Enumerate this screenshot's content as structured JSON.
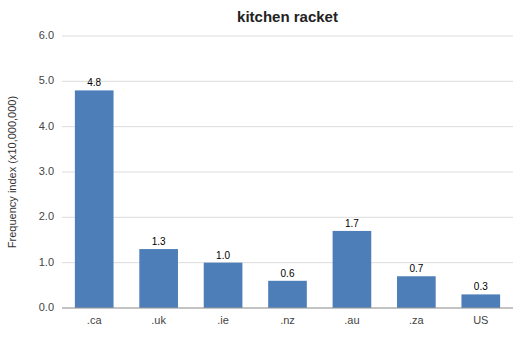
{
  "chart_data": {
    "type": "bar",
    "title": "kitchen racket",
    "categories": [
      ".ca",
      ".uk",
      ".ie",
      ".nz",
      ".au",
      ".za",
      "US"
    ],
    "values": [
      4.8,
      1.3,
      1.0,
      0.6,
      1.7,
      0.7,
      0.3
    ],
    "value_labels": [
      "4.8",
      "1.3",
      "1.0",
      "0.6",
      "1.7",
      "0.7",
      "0.3"
    ],
    "color": "#4d7eb8",
    "ylabel": "Frequency index (x10,000,000)",
    "ylim": [
      0.0,
      6.0
    ],
    "yticks": [
      {
        "value": 0,
        "label": "0.0"
      },
      {
        "value": 1,
        "label": "1.0"
      },
      {
        "value": 2,
        "label": "2.0"
      },
      {
        "value": 3,
        "label": "3.0"
      },
      {
        "value": 4,
        "label": "4.0"
      },
      {
        "value": 5,
        "label": "5.0"
      },
      {
        "value": 6,
        "label": "6.0"
      }
    ],
    "grid": true,
    "data_labels": true
  }
}
